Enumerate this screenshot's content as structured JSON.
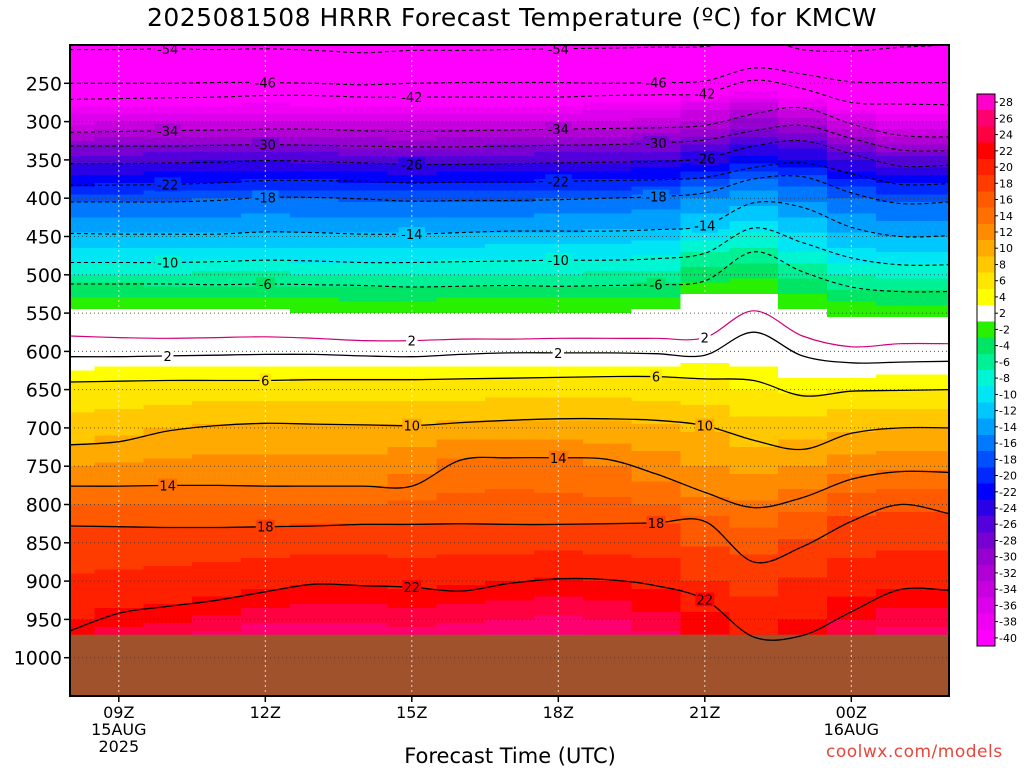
{
  "title": "2025081508 HRRR Forecast Temperature (ºC) for KMCW",
  "xlabel": "Forecast Time (UTC)",
  "credit": "coolwx.com/models",
  "chart_data": {
    "type": "heatmap",
    "title": "2025081508 HRRR Forecast Temperature (ºC) for KMCW",
    "xlabel": "Forecast Time (UTC)",
    "x_range_hours": [
      8,
      26
    ],
    "y_range_hpa": [
      200,
      1050
    ],
    "x_ticks": [
      {
        "hour": 9,
        "label": [
          "09Z",
          "15AUG",
          "2025"
        ]
      },
      {
        "hour": 12,
        "label": [
          "12Z"
        ]
      },
      {
        "hour": 15,
        "label": [
          "15Z"
        ]
      },
      {
        "hour": 18,
        "label": [
          "18Z"
        ]
      },
      {
        "hour": 21,
        "label": [
          "21Z"
        ]
      },
      {
        "hour": 24,
        "label": [
          "00Z",
          "16AUG"
        ]
      }
    ],
    "y_ticks": [
      250,
      300,
      350,
      400,
      450,
      500,
      550,
      600,
      650,
      700,
      750,
      800,
      850,
      900,
      950,
      1000
    ],
    "surface_pressure_hpa": 970,
    "colorbar_ticks": [
      28,
      26,
      24,
      22,
      20,
      18,
      16,
      14,
      12,
      10,
      8,
      6,
      4,
      2,
      -2,
      -4,
      -6,
      -8,
      -10,
      -12,
      -14,
      -16,
      -18,
      -20,
      -22,
      -24,
      -26,
      -28,
      -30,
      -32,
      -34,
      -36,
      -38,
      -40
    ],
    "contour_x_hours": [
      8,
      9,
      10,
      11,
      12,
      13,
      14,
      15,
      16,
      17,
      18,
      19,
      20,
      21,
      22,
      23,
      24,
      25,
      26
    ],
    "contours": [
      {
        "value": -54,
        "p": [
          206,
          206,
          205,
          206,
          205,
          207,
          210,
          207,
          207,
          206,
          205,
          204,
          203,
          202,
          190,
          206,
          208,
          203,
          200
        ]
      },
      {
        "value": -46,
        "p": [
          250,
          250,
          250,
          249,
          249,
          250,
          252,
          250,
          249,
          249,
          249,
          250,
          249,
          247,
          230,
          238,
          248,
          249,
          249
        ]
      },
      {
        "value": -42,
        "p": [
          271,
          270,
          269,
          268,
          266,
          266,
          268,
          268,
          268,
          268,
          268,
          266,
          265,
          263,
          246,
          257,
          275,
          277,
          278
        ]
      },
      {
        "value": -34,
        "p": [
          314,
          313,
          312,
          311,
          310,
          310,
          312,
          313,
          312,
          311,
          310,
          309,
          308,
          305,
          290,
          282,
          303,
          318,
          320
        ]
      },
      {
        "value": -30,
        "p": [
          332,
          332,
          332,
          331,
          330,
          331,
          332,
          333,
          333,
          332,
          331,
          330,
          328,
          324,
          312,
          305,
          322,
          337,
          338
        ]
      },
      {
        "value": -26,
        "p": [
          355,
          355,
          354,
          353,
          351,
          352,
          354,
          356,
          356,
          355,
          354,
          353,
          352,
          348,
          332,
          325,
          342,
          358,
          357
        ]
      },
      {
        "value": -22,
        "p": [
          383,
          383,
          382,
          380,
          377,
          377,
          378,
          380,
          379,
          379,
          378,
          377,
          376,
          373,
          360,
          354,
          368,
          382,
          381
        ]
      },
      {
        "value": -18,
        "p": [
          405,
          405,
          405,
          403,
          399,
          399,
          401,
          404,
          403,
          403,
          402,
          400,
          398,
          393,
          375,
          372,
          393,
          407,
          405
        ]
      },
      {
        "value": -14,
        "p": [
          446,
          447,
          447,
          447,
          444,
          445,
          447,
          447,
          445,
          443,
          443,
          443,
          441,
          436,
          406,
          412,
          438,
          450,
          449
        ]
      },
      {
        "value": -10,
        "p": [
          484,
          484,
          484,
          483,
          481,
          482,
          484,
          484,
          483,
          482,
          481,
          481,
          479,
          472,
          439,
          458,
          478,
          487,
          487
        ]
      },
      {
        "value": -6,
        "p": [
          512,
          512,
          512,
          513,
          512,
          513,
          514,
          516,
          515,
          514,
          515,
          514,
          513,
          508,
          470,
          496,
          516,
          522,
          522
        ]
      },
      {
        "value": 2,
        "p": [
          580,
          582,
          583,
          582,
          581,
          583,
          586,
          586,
          584,
          584,
          583,
          583,
          583,
          582,
          547,
          580,
          594,
          590,
          590
        ]
      },
      {
        "value": 2,
        "p": [
          607,
          607,
          606,
          605,
          604,
          604,
          606,
          607,
          604,
          602,
          602,
          602,
          603,
          605,
          575,
          606,
          615,
          614,
          613
        ]
      },
      {
        "value": 6,
        "p": [
          640,
          639,
          638,
          638,
          638,
          637,
          637,
          637,
          636,
          635,
          634,
          633,
          633,
          636,
          638,
          658,
          652,
          651,
          650
        ]
      },
      {
        "value": 10,
        "p": [
          722,
          718,
          704,
          697,
          694,
          695,
          696,
          697,
          693,
          690,
          688,
          688,
          690,
          697,
          716,
          728,
          707,
          700,
          700
        ]
      },
      {
        "value": 14,
        "p": [
          776,
          776,
          775,
          775,
          776,
          776,
          776,
          776,
          742,
          739,
          739,
          741,
          760,
          784,
          804,
          791,
          767,
          757,
          758
        ]
      },
      {
        "value": 18,
        "p": [
          828,
          829,
          830,
          830,
          829,
          828,
          826,
          826,
          825,
          826,
          826,
          825,
          824,
          822,
          875,
          855,
          822,
          800,
          812
        ]
      },
      {
        "value": 22,
        "p": [
          965,
          942,
          933,
          925,
          914,
          904,
          906,
          908,
          913,
          903,
          897,
          898,
          906,
          924,
          973,
          971,
          940,
          911,
          912
        ]
      }
    ]
  },
  "colors": {
    "background": "#ffffff",
    "surface": "#a0522d",
    "credit": "#e8463c"
  }
}
